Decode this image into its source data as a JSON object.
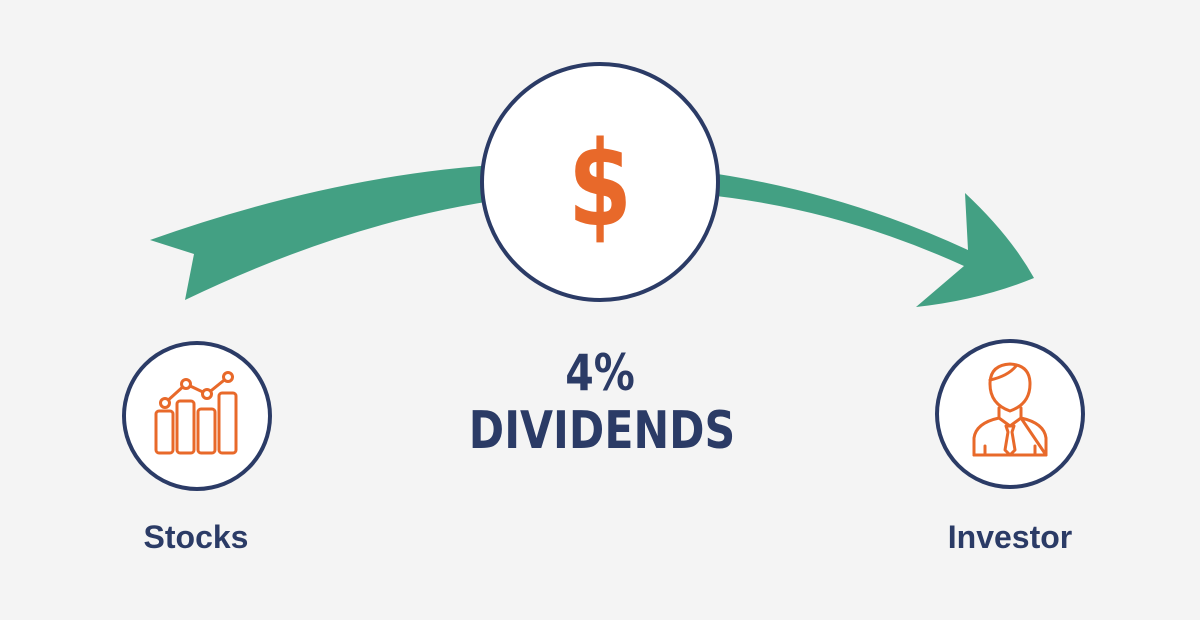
{
  "diagram": {
    "source_label": "Stocks",
    "target_label": "Investor",
    "center_symbol": "$",
    "rate": "4%",
    "flow_label": "DIVIDENDS"
  },
  "colors": {
    "background": "#f4f4f4",
    "arrow": "#43a083",
    "circle_stroke": "#2b3b66",
    "icon": "#e8692a",
    "text": "#2b3b66"
  },
  "icons": {
    "source": "bar-chart-trend-icon",
    "center": "dollar-icon",
    "target": "businessman-icon"
  }
}
